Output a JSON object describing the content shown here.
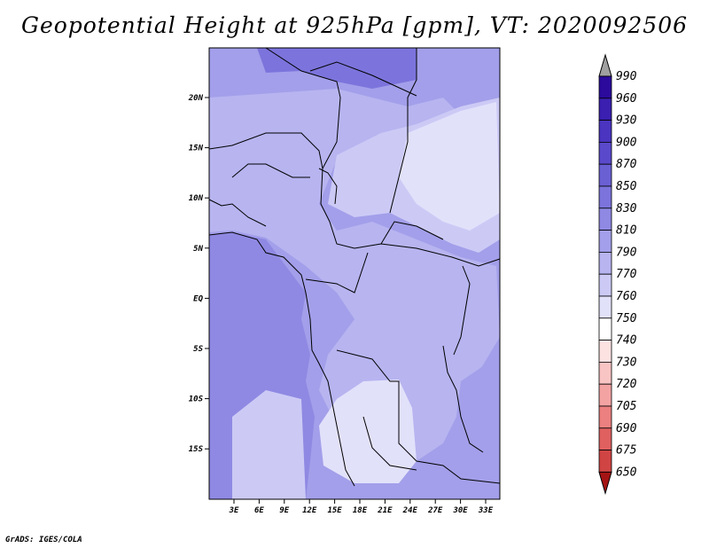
{
  "title": "Geopotential Height at 925hPa [gpm], VT: 2020092506",
  "credit": "GrADS: IGES/COLA",
  "map": {
    "lat_labels": [
      "20N",
      "15N",
      "10N",
      "5N",
      "EQ",
      "5S",
      "10S",
      "15S"
    ],
    "lon_labels": [
      "3E",
      "6E",
      "9E",
      "12E",
      "15E",
      "18E",
      "21E",
      "24E",
      "27E",
      "30E",
      "33E"
    ]
  },
  "colorbar": {
    "levels": [
      "990",
      "960",
      "930",
      "900",
      "870",
      "850",
      "830",
      "810",
      "790",
      "770",
      "760",
      "750",
      "740",
      "730",
      "720",
      "705",
      "690",
      "675",
      "650"
    ],
    "colors": [
      "#2b0a9c",
      "#3a1fb0",
      "#4a34c0",
      "#5a4acb",
      "#6a60d4",
      "#7c74dc",
      "#8f89e3",
      "#a39fea",
      "#b7b4f0",
      "#cccaf5",
      "#e2e1fa",
      "#ffffff",
      "#fde2e2",
      "#f9c4c4",
      "#f4a3a3",
      "#ec8080",
      "#e06060",
      "#d04444",
      "#bb2a2a",
      "#a51414"
    ],
    "arrow_top_color": "#a0a0a0",
    "arrow_bottom_color": "#a51414"
  },
  "field_colors": {
    "deep": "#8f89e3",
    "mid": "#a39fea",
    "light": "#b7b4f0",
    "lighter": "#cccaf5",
    "lightest": "#e2e1fa",
    "north": "#7c74dc"
  }
}
